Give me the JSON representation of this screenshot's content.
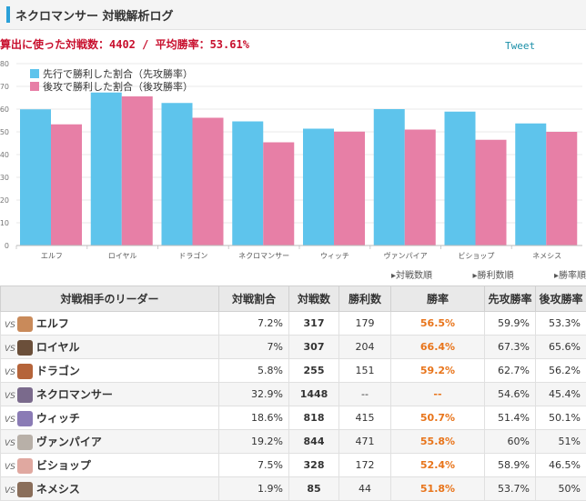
{
  "header": {
    "title": "ネクロマンサー 対戦解析ログ"
  },
  "stats": {
    "text": "算出に使った対戦数：4402 / 平均勝率：53.61%"
  },
  "tweet": {
    "label": "Tweet"
  },
  "chart_data": {
    "type": "bar",
    "categories": [
      "エルフ",
      "ロイヤル",
      "ドラゴン",
      "ネクロマンサー",
      "ウィッチ",
      "ヴァンパイア",
      "ビショップ",
      "ネメシス"
    ],
    "series": [
      {
        "name": "先行で勝利した割合（先攻勝率）",
        "values": [
          59.9,
          67.3,
          62.7,
          54.6,
          51.4,
          60,
          58.9,
          53.7
        ],
        "color": "#5ec4ec"
      },
      {
        "name": "後攻で勝利した割合（後攻勝率）",
        "values": [
          53.3,
          65.6,
          56.2,
          45.4,
          50.1,
          51,
          46.5,
          50
        ],
        "color": "#e77fa6"
      }
    ],
    "ylim": [
      0,
      80
    ],
    "yticks": [
      0,
      10,
      20,
      30,
      40,
      50,
      60,
      70,
      80
    ],
    "legend": "top-left",
    "grid": true
  },
  "sort_links": [
    "対戦数順",
    "勝利数順",
    "勝率順"
  ],
  "table": {
    "headers": [
      "対戦相手のリーダー",
      "対戦割合",
      "対戦数",
      "勝利数",
      "勝率",
      "先攻勝率",
      "後攻勝率"
    ],
    "vs_label": "VS",
    "rows": [
      {
        "leader": "エルフ",
        "share": "7.2%",
        "battles": "317",
        "wins": "179",
        "rate": "56.5%",
        "first": "59.9%",
        "second": "53.3%",
        "avatar_color": "#c98a5a"
      },
      {
        "leader": "ロイヤル",
        "share": "7%",
        "battles": "307",
        "wins": "204",
        "rate": "66.4%",
        "first": "67.3%",
        "second": "65.6%",
        "avatar_color": "#6b4f3a"
      },
      {
        "leader": "ドラゴン",
        "share": "5.8%",
        "battles": "255",
        "wins": "151",
        "rate": "59.2%",
        "first": "62.7%",
        "second": "56.2%",
        "avatar_color": "#b5643a"
      },
      {
        "leader": "ネクロマンサー",
        "share": "32.9%",
        "battles": "1448",
        "wins": "--",
        "rate": "--",
        "first": "54.6%",
        "second": "45.4%",
        "avatar_color": "#7a6a8c"
      },
      {
        "leader": "ウィッチ",
        "share": "18.6%",
        "battles": "818",
        "wins": "415",
        "rate": "50.7%",
        "first": "51.4%",
        "second": "50.1%",
        "avatar_color": "#8a7bb5"
      },
      {
        "leader": "ヴァンパイア",
        "share": "19.2%",
        "battles": "844",
        "wins": "471",
        "rate": "55.8%",
        "first": "60%",
        "second": "51%",
        "avatar_color": "#b8b0a8"
      },
      {
        "leader": "ビショップ",
        "share": "7.5%",
        "battles": "328",
        "wins": "172",
        "rate": "52.4%",
        "first": "58.9%",
        "second": "46.5%",
        "avatar_color": "#e0a8a0"
      },
      {
        "leader": "ネメシス",
        "share": "1.9%",
        "battles": "85",
        "wins": "44",
        "rate": "51.8%",
        "first": "53.7%",
        "second": "50%",
        "avatar_color": "#8a6e5a"
      }
    ]
  }
}
